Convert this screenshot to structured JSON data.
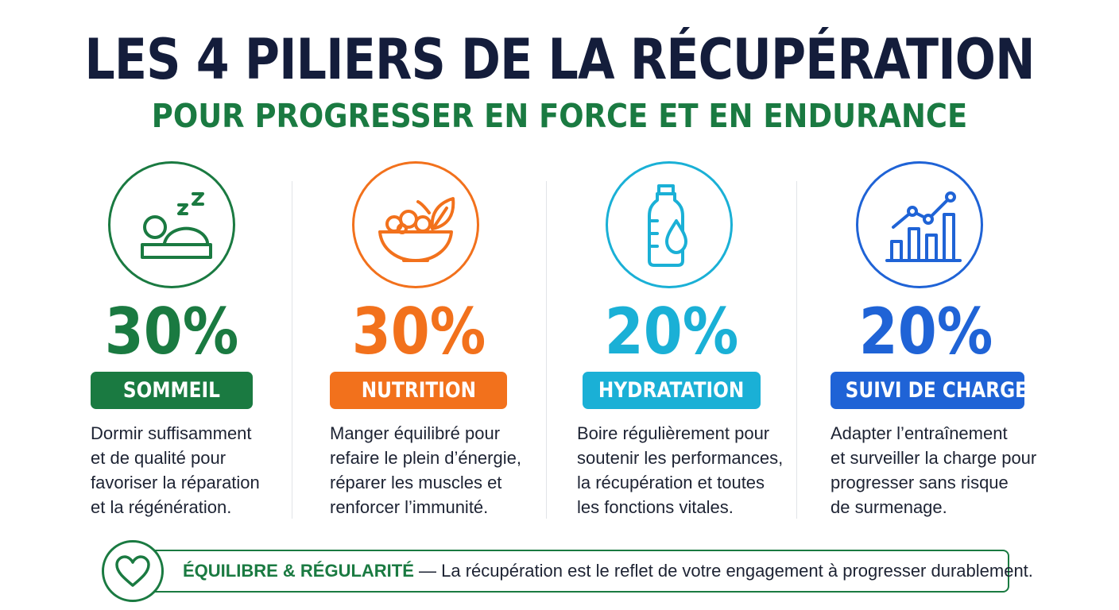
{
  "header": {
    "title": "LES 4 PILIERS DE LA RÉCUPÉRATION",
    "subtitle": "POUR PROGRESSER EN FORCE ET EN ENDURANCE"
  },
  "pillars": [
    {
      "percent": "30%",
      "label": "SOMMEIL",
      "icon": "sleep-icon",
      "color": "#1a7a41",
      "desc": [
        "Dormir suffisamment",
        "et de qualité pour",
        "favoriser la réparation",
        "et la régénération."
      ]
    },
    {
      "percent": "30%",
      "label": "NUTRITION",
      "icon": "food-bowl-icon",
      "color": "#f2711c",
      "desc": [
        "Manger équilibré pour",
        "refaire le plein d’énergie,",
        "réparer les muscles et",
        "renforcer l’immunité."
      ]
    },
    {
      "percent": "20%",
      "label": "HYDRATATION",
      "icon": "water-bottle-icon",
      "color": "#1ab0d6",
      "desc": [
        "Boire régulièrement pour",
        "soutenir les performances,",
        "la récupération et toutes",
        "les fonctions vitales."
      ]
    },
    {
      "percent": "20%",
      "label": "SUIVI DE CHARGE",
      "icon": "chart-icon",
      "color": "#1f63d6",
      "desc": [
        "Adapter l’entraînement",
        "et surveiller la charge pour",
        "progresser sans risque",
        "de surmenage."
      ]
    }
  ],
  "footer": {
    "icon": "heart-icon",
    "highlight": "ÉQUILIBRE & RÉGULARITÉ",
    "text": " — La récupération est le reflet de votre engagement à progresser durablement."
  }
}
